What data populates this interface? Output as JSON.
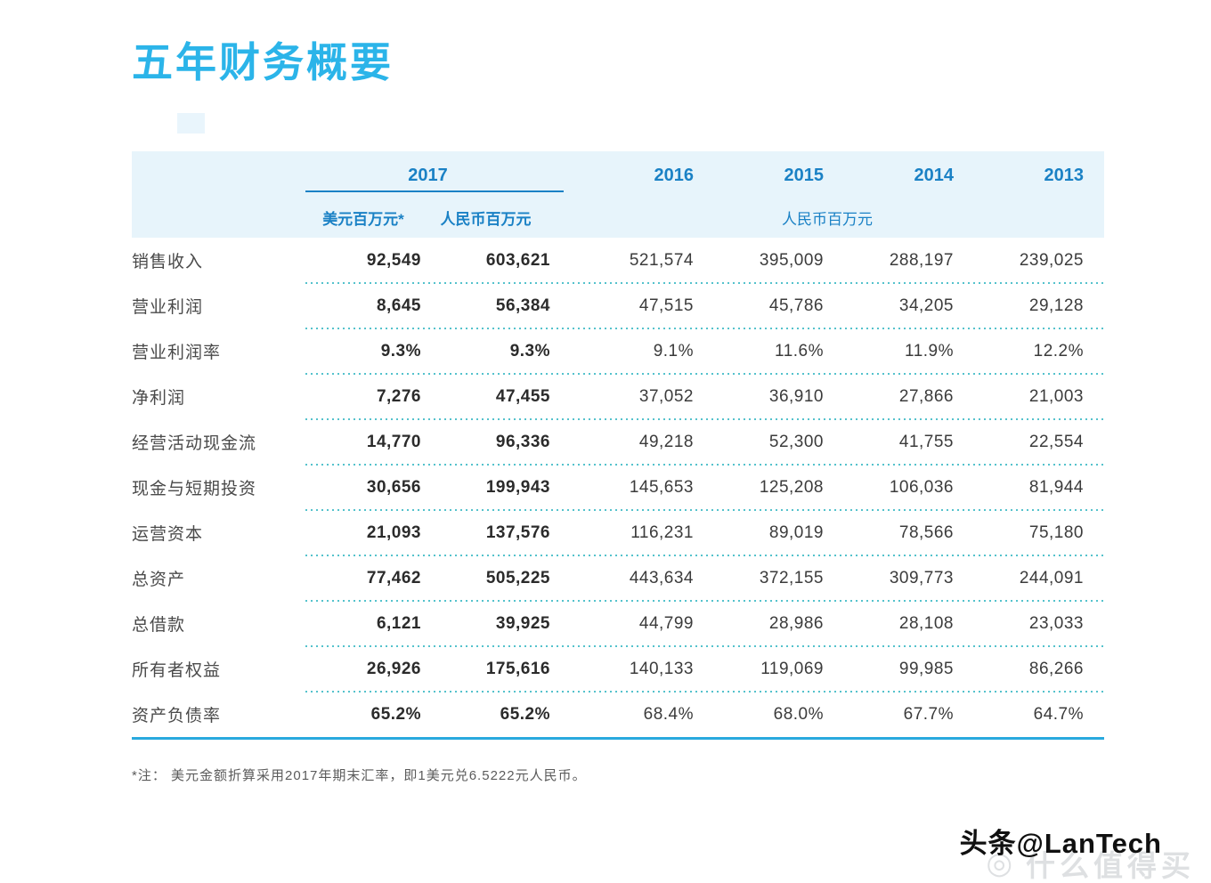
{
  "page": {
    "title": "五年财务概要",
    "footnote": "*注： 美元金额折算采用2017年期末汇率，即1美元兑6.5222元人民币。",
    "watermark_text": "头条@LanTech",
    "watermark_faint": "什么值得买"
  },
  "table": {
    "years": [
      "2017",
      "2016",
      "2015",
      "2014",
      "2013"
    ],
    "units": {
      "usd_2017": "美元百万元*",
      "rmb_2017": "人民币百万元",
      "rmb_other": "人民币百万元"
    },
    "rows": [
      {
        "label": "销售收入",
        "values": [
          "92,549",
          "603,621",
          "521,574",
          "395,009",
          "288,197",
          "239,025"
        ]
      },
      {
        "label": "营业利润",
        "values": [
          "8,645",
          "56,384",
          "47,515",
          "45,786",
          "34,205",
          "29,128"
        ]
      },
      {
        "label": "营业利润率",
        "values": [
          "9.3%",
          "9.3%",
          "9.1%",
          "11.6%",
          "11.9%",
          "12.2%"
        ]
      },
      {
        "label": "净利润",
        "values": [
          "7,276",
          "47,455",
          "37,052",
          "36,910",
          "27,866",
          "21,003"
        ]
      },
      {
        "label": "经营活动现金流",
        "values": [
          "14,770",
          "96,336",
          "49,218",
          "52,300",
          "41,755",
          "22,554"
        ]
      },
      {
        "label": "现金与短期投资",
        "values": [
          "30,656",
          "199,943",
          "145,653",
          "125,208",
          "106,036",
          "81,944"
        ]
      },
      {
        "label": "运营资本",
        "values": [
          "21,093",
          "137,576",
          "116,231",
          "89,019",
          "78,566",
          "75,180"
        ]
      },
      {
        "label": "总资产",
        "values": [
          "77,462",
          "505,225",
          "443,634",
          "372,155",
          "309,773",
          "244,091"
        ]
      },
      {
        "label": "总借款",
        "values": [
          "6,121",
          "39,925",
          "44,799",
          "28,986",
          "28,108",
          "23,033"
        ]
      },
      {
        "label": "所有者权益",
        "values": [
          "26,926",
          "175,616",
          "140,133",
          "119,069",
          "99,985",
          "86,266"
        ]
      },
      {
        "label": "资产负债率",
        "values": [
          "65.2%",
          "65.2%",
          "68.4%",
          "68.0%",
          "67.7%",
          "64.7%"
        ]
      }
    ]
  },
  "colors": {
    "title": "#2bb4e9",
    "header_bg": "#e7f4fb",
    "header_text": "#1a81c5",
    "dotted_line": "#54c2cc",
    "bottom_line": "#29a9de"
  }
}
